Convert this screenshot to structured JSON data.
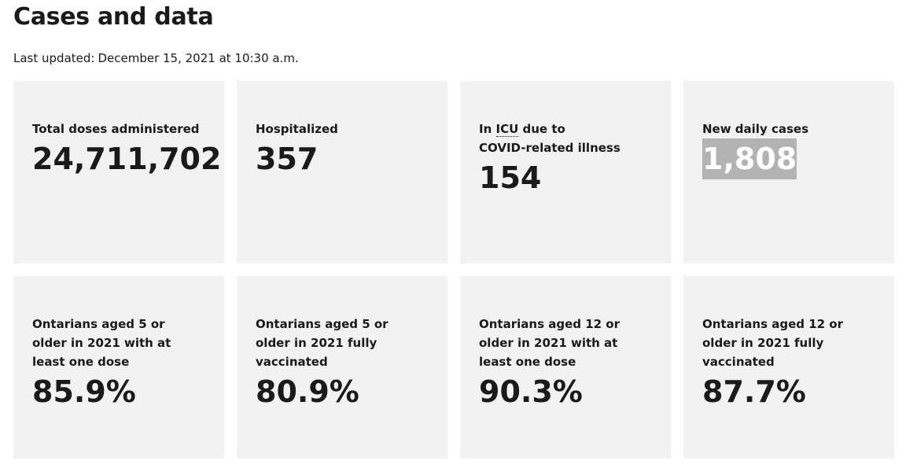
{
  "page": {
    "title": "Cases and data",
    "last_updated_label": "Last updated:",
    "last_updated_value": "December 15, 2021 at 10:30 a.m."
  },
  "cards": [
    {
      "label": "Total doses administered",
      "value": "24,711,702"
    },
    {
      "label": "Hospitalized",
      "value": "357"
    },
    {
      "label_prefix": "In",
      "label_abbr": "ICU",
      "label_rest": "due to",
      "label_line2": "COVID-related illness",
      "value": "154"
    },
    {
      "label": "New daily cases",
      "value": "1,808",
      "value_highlighted": true
    },
    {
      "label": "Ontarians aged 5 or older in 2021 with at least one dose",
      "value": "85.9%"
    },
    {
      "label": "Ontarians aged 5 or older in 2021 fully vaccinated",
      "value": "80.9%"
    },
    {
      "label": "Ontarians aged 12 or older in 2021 with at least one dose",
      "value": "90.3%"
    },
    {
      "label": "Ontarians aged 12 or older in 2021 fully vaccinated",
      "value": "87.7%"
    }
  ],
  "colors": {
    "card_background": "#f2f2f2",
    "text": "#1a1a1a",
    "highlight_background": "#b3b3b3",
    "highlight_text": "#ffffff"
  }
}
